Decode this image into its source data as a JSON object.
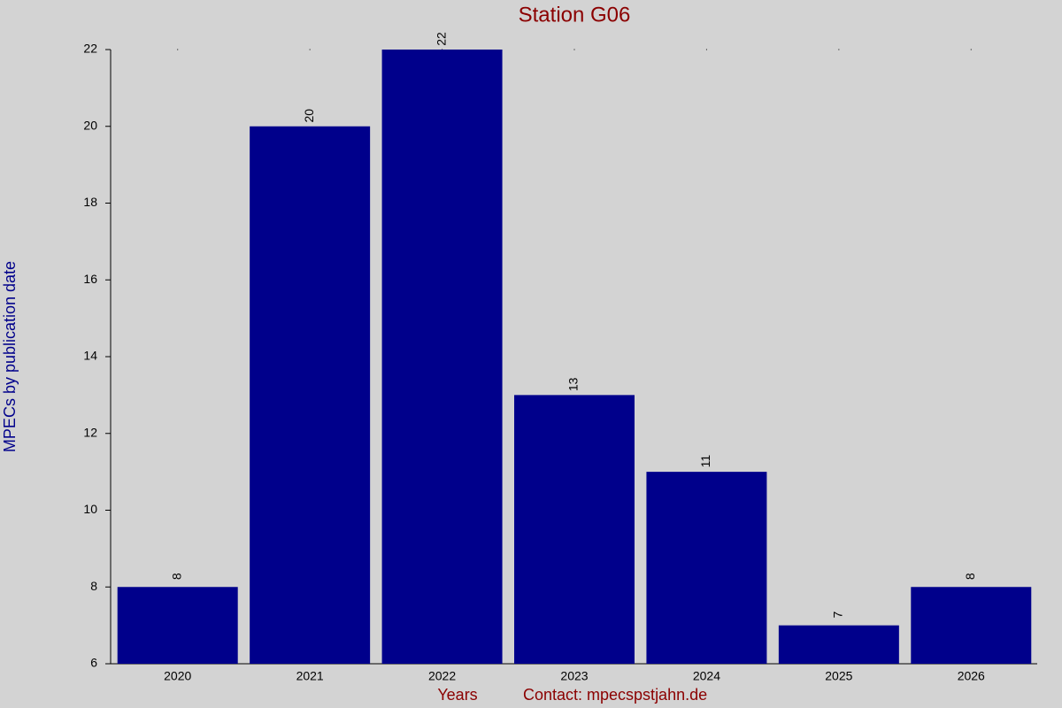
{
  "chart_data": {
    "type": "bar",
    "title": "Station G06",
    "y_label": "MPECs by publication date",
    "x_label": "Years",
    "contact": "Contact: mpecspstjahn.de",
    "categories": [
      "2020",
      "2021",
      "2022",
      "2023",
      "2024",
      "2025",
      "2026"
    ],
    "values": [
      8,
      20,
      22,
      13,
      11,
      7,
      8
    ],
    "color": "#00008b",
    "ylim": [
      6,
      22
    ],
    "yticks": [
      6,
      8,
      10,
      12,
      14,
      16,
      18,
      20,
      22
    ]
  }
}
